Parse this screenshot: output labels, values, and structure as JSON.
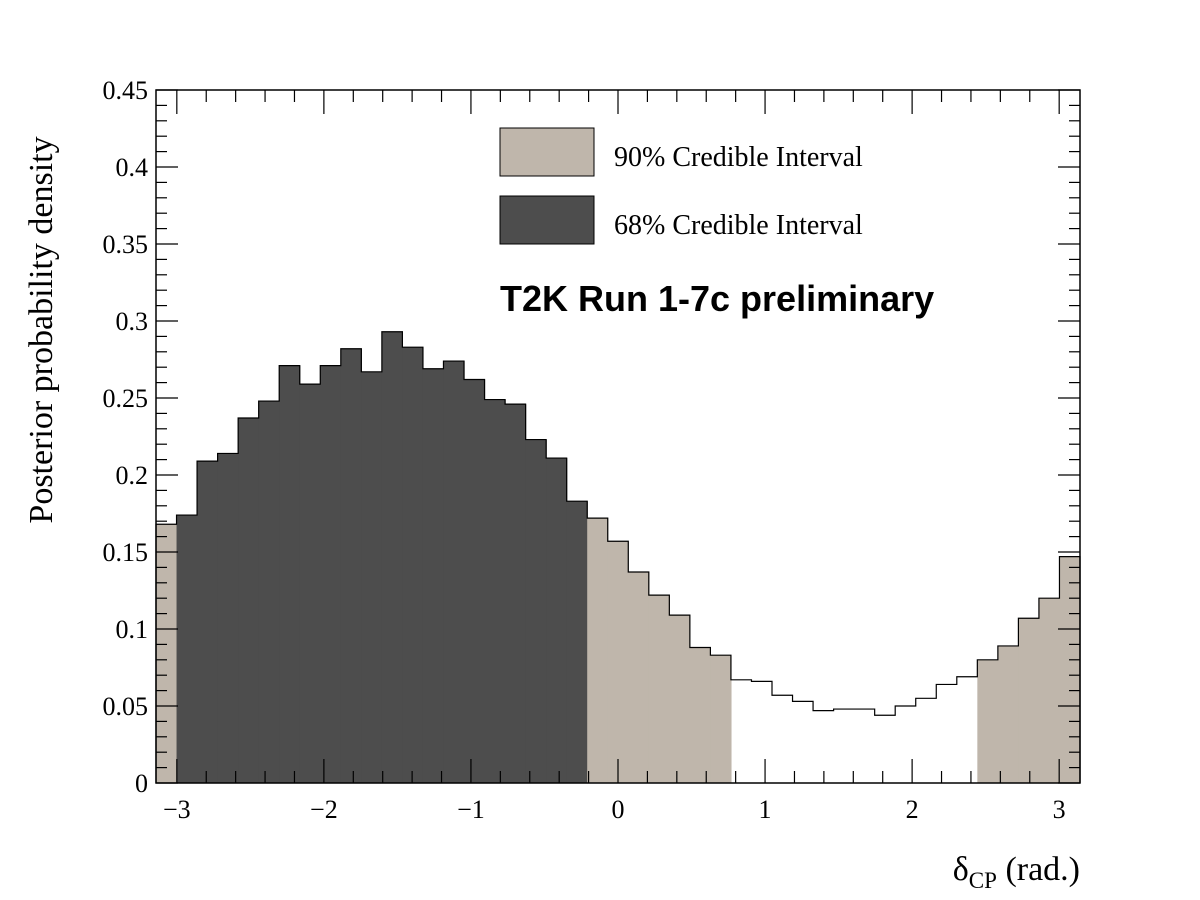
{
  "chart_data": {
    "type": "bar",
    "title": "",
    "xlabel": "δ",
    "xlabel_sub": "CP",
    "xlabel_suffix": " (rad.)",
    "ylabel": "Posterior probability density",
    "xlim": [
      -3.1416,
      3.1416
    ],
    "ylim": [
      0,
      0.45
    ],
    "x_ticks": [
      -3,
      -2,
      -1,
      0,
      1,
      2,
      3
    ],
    "x_tick_labels": [
      "−3",
      "−2",
      "−1",
      "0",
      "1",
      "2",
      "3"
    ],
    "y_ticks": [
      0,
      0.05,
      0.1,
      0.15,
      0.2,
      0.25,
      0.3,
      0.35,
      0.4,
      0.45
    ],
    "y_tick_labels": [
      "0",
      "0.05",
      "0.1",
      "0.15",
      "0.2",
      "0.25",
      "0.3",
      "0.35",
      "0.4",
      "0.45"
    ],
    "bins": 45,
    "values": [
      0.168,
      0.174,
      0.209,
      0.214,
      0.237,
      0.248,
      0.271,
      0.259,
      0.271,
      0.282,
      0.267,
      0.293,
      0.283,
      0.269,
      0.274,
      0.262,
      0.249,
      0.246,
      0.223,
      0.211,
      0.183,
      0.172,
      0.157,
      0.137,
      0.122,
      0.109,
      0.088,
      0.083,
      0.067,
      0.066,
      0.057,
      0.053,
      0.047,
      0.048,
      0.048,
      0.044,
      0.05,
      0.055,
      0.064,
      0.069,
      0.08,
      0.089,
      0.107,
      0.12,
      0.147
    ],
    "region_by_bin": [
      90,
      68,
      68,
      68,
      68,
      68,
      68,
      68,
      68,
      68,
      68,
      68,
      68,
      68,
      68,
      68,
      68,
      68,
      68,
      68,
      68,
      90,
      90,
      90,
      90,
      90,
      90,
      90,
      0,
      0,
      0,
      0,
      0,
      0,
      0,
      0,
      0,
      0,
      0,
      0,
      90,
      90,
      90,
      90,
      90
    ],
    "legend": [
      {
        "label": "90% Credible Interval",
        "color": "#bfb6ab"
      },
      {
        "label": "68% Credible Interval",
        "color": "#4d4d4d"
      }
    ],
    "legend_placement": "top-right",
    "annotation": "T2K Run 1-7c preliminary",
    "grid": false
  }
}
